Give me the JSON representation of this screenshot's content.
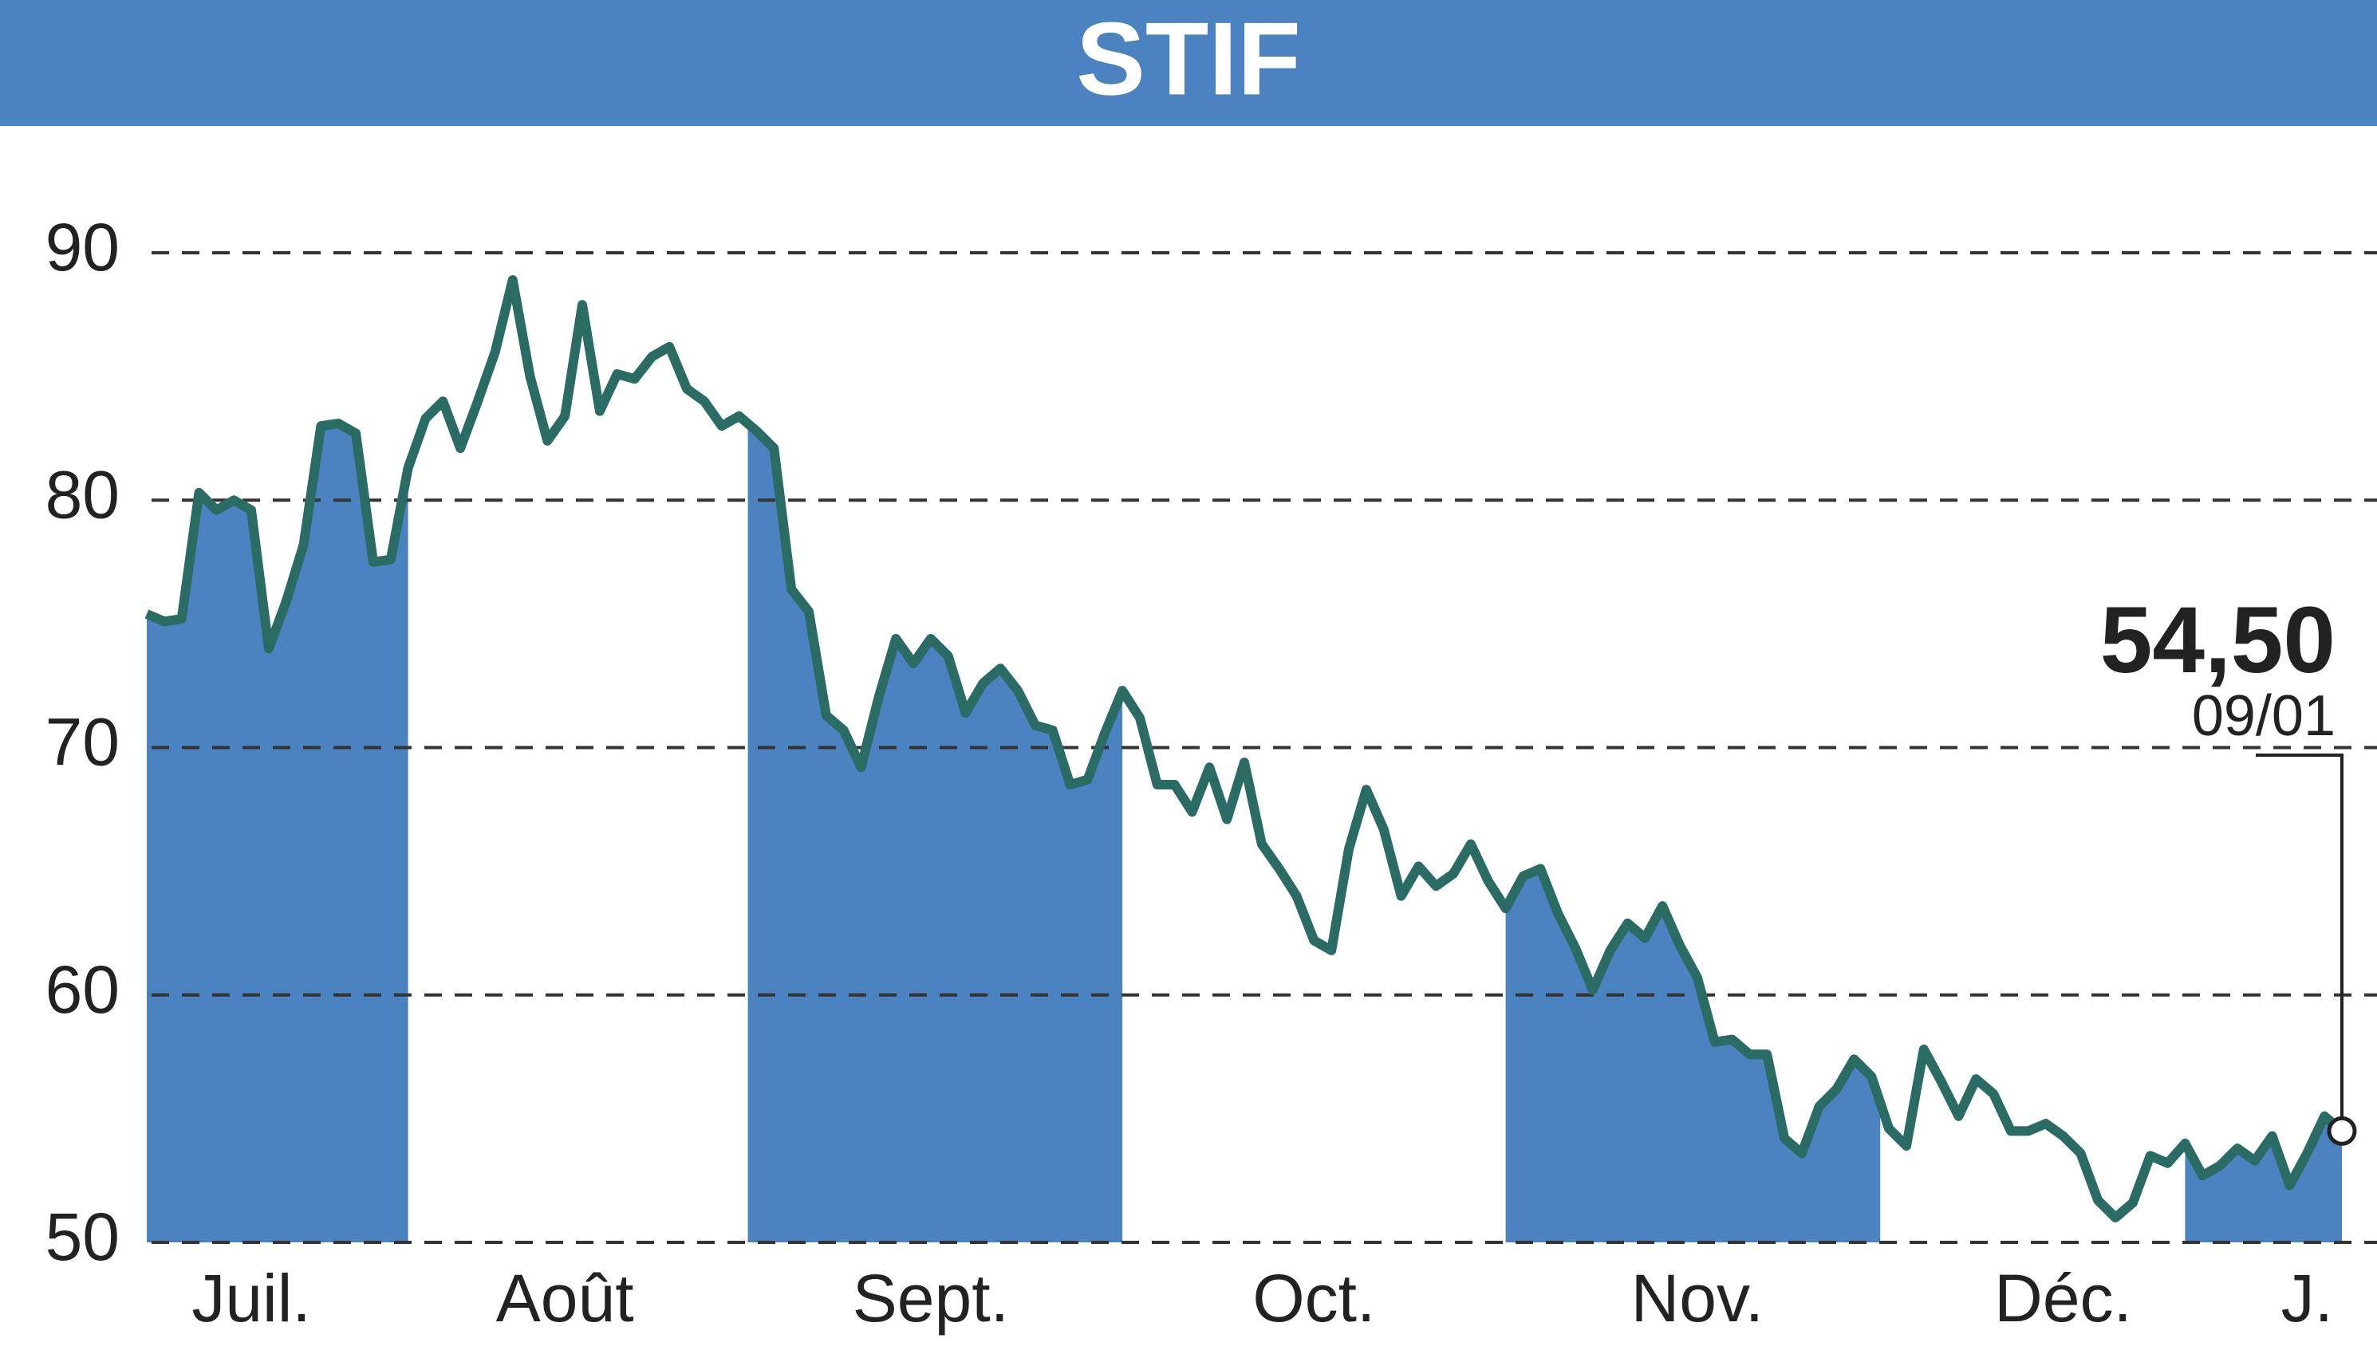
{
  "chart_data": {
    "type": "line",
    "title": "STIF",
    "ylim": [
      50,
      90
    ],
    "yticks": [
      50,
      60,
      70,
      80,
      90
    ],
    "grid": true,
    "shade_alternate_months": true,
    "shade_color": "#4a83c0",
    "categories": [
      null,
      null,
      null,
      null,
      null,
      null,
      "Juil.",
      null,
      null,
      null,
      null,
      null,
      null,
      null,
      null,
      null,
      null,
      null,
      null,
      null,
      null,
      null,
      null,
      null,
      "Août",
      null,
      null,
      null,
      null,
      null,
      null,
      null,
      null,
      null,
      null,
      null,
      null,
      null,
      null,
      null,
      null,
      null,
      null,
      null,
      null,
      "Sept.",
      null,
      null,
      null,
      null,
      null,
      null,
      null,
      null,
      null,
      null,
      null,
      null,
      null,
      null,
      null,
      null,
      null,
      null,
      null,
      null,
      null,
      "Oct.",
      null,
      null,
      null,
      null,
      null,
      null,
      null,
      null,
      null,
      null,
      null,
      null,
      null,
      null,
      null,
      null,
      null,
      null,
      null,
      null,
      null,
      "Nov.",
      null,
      null,
      null,
      null,
      null,
      null,
      null,
      null,
      null,
      null,
      null,
      null,
      null,
      null,
      null,
      null,
      null,
      null,
      null,
      null,
      "Déc.",
      null,
      null,
      null,
      null,
      null,
      null,
      null,
      null,
      null,
      null,
      null,
      null,
      null,
      "J.",
      null,
      null
    ],
    "series": [
      {
        "color": "#2a6b63",
        "values": [
          75.4,
          75.1,
          75.2,
          80.3,
          79.6,
          80.0,
          79.6,
          74.0,
          75.9,
          78.2,
          83.0,
          83.1,
          82.7,
          77.5,
          77.6,
          81.3,
          83.3,
          84.0,
          82.1,
          84.0,
          86.0,
          88.9,
          85.0,
          82.4,
          83.4,
          87.9,
          83.6,
          85.1,
          84.9,
          85.8,
          86.2,
          84.5,
          84.0,
          83.0,
          83.4,
          82.8,
          82.1,
          76.4,
          75.5,
          71.3,
          70.7,
          69.2,
          72.0,
          74.4,
          73.4,
          74.4,
          73.7,
          71.4,
          72.6,
          73.2,
          72.3,
          70.9,
          70.7,
          68.5,
          68.7,
          70.6,
          72.3,
          71.2,
          68.5,
          68.5,
          67.4,
          69.2,
          67.1,
          69.4,
          66.1,
          65.1,
          64.0,
          62.2,
          61.8,
          65.9,
          68.3,
          66.7,
          64.0,
          65.2,
          64.4,
          64.9,
          66.1,
          64.6,
          63.5,
          64.8,
          65.1,
          63.3,
          61.9,
          60.2,
          61.8,
          62.9,
          62.3,
          63.6,
          62.0,
          60.7,
          58.1,
          58.2,
          57.6,
          57.6,
          54.2,
          53.6,
          55.5,
          56.2,
          57.4,
          56.7,
          54.6,
          53.9,
          57.8,
          56.5,
          55.1,
          56.6,
          56.0,
          54.5,
          54.5,
          54.8,
          54.3,
          53.6,
          51.7,
          51.0,
          51.6,
          53.5,
          53.2,
          54.0,
          52.7,
          53.1,
          53.8,
          53.3,
          54.3,
          52.3,
          53.6,
          55.1,
          54.5
        ],
        "value_labels": [
          null,
          null,
          null,
          null,
          null,
          null,
          null,
          null,
          null,
          null,
          null,
          null,
          null,
          null,
          null,
          null,
          null,
          null,
          null,
          null,
          null,
          null,
          null,
          null,
          null,
          null,
          null,
          null,
          null,
          null,
          null,
          null,
          null,
          null,
          null,
          null,
          null,
          null,
          null,
          null,
          null,
          null,
          null,
          null,
          null,
          null,
          null,
          null,
          null,
          null,
          null,
          null,
          null,
          null,
          null,
          null,
          null,
          null,
          null,
          null,
          null,
          null,
          null,
          null,
          null,
          null,
          null,
          null,
          null,
          null,
          null,
          null,
          null,
          null,
          null,
          null,
          null,
          null,
          null,
          null,
          null,
          null,
          null,
          null,
          null,
          null,
          null,
          null,
          null,
          null,
          null,
          null,
          null,
          null,
          null,
          null,
          null,
          null,
          null,
          null,
          null,
          null,
          null,
          null,
          null,
          null,
          null,
          null,
          null,
          null,
          null,
          null,
          null,
          null,
          null,
          null,
          null,
          null,
          null,
          null,
          null,
          null,
          null,
          null,
          null,
          null,
          "54,50"
        ]
      }
    ],
    "last_date": "09/01"
  }
}
